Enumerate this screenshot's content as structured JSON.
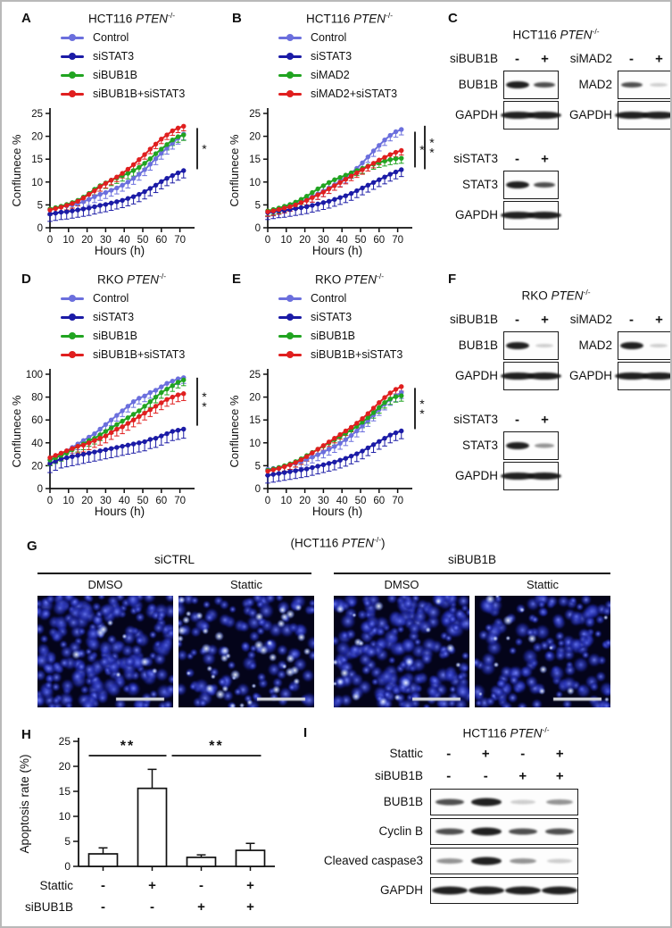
{
  "colors": {
    "control_blue": "#6b6fdd",
    "sistat3_blue": "#1b1ba6",
    "green": "#21a421",
    "red": "#e01f1f",
    "nuclei_blue": "#2133cc",
    "axis_black": "#111111"
  },
  "chart_data": [
    {
      "panel": "A",
      "type": "line",
      "title_cell": "HCT116",
      "title_gene": "PTEN",
      "title_sup": "-/-",
      "xlabel": "Hours (h)",
      "ylabel": "Conflunece %",
      "ylim": [
        0,
        25
      ],
      "yticks": [
        0,
        5,
        10,
        15,
        20,
        25
      ],
      "xticks": [
        0,
        10,
        20,
        30,
        40,
        50,
        60,
        70
      ],
      "x": [
        0,
        3,
        6,
        9,
        12,
        15,
        18,
        21,
        24,
        27,
        30,
        33,
        36,
        39,
        42,
        45,
        48,
        51,
        54,
        57,
        60,
        63,
        66,
        69,
        72
      ],
      "series": [
        {
          "name": "Control",
          "color": "#6b6fdd",
          "err": 1.3,
          "values": [
            4.0,
            4.3,
            4.6,
            4.8,
            5.0,
            5.3,
            5.7,
            6.2,
            6.8,
            7.3,
            7.7,
            8.2,
            8.7,
            9.3,
            10.0,
            10.8,
            11.7,
            12.7,
            13.9,
            15.1,
            16.3,
            17.4,
            18.5,
            19.6,
            20.5
          ]
        },
        {
          "name": "siSTAT3",
          "color": "#1b1ba6",
          "err": 1.6,
          "values": [
            3.0,
            3.2,
            3.4,
            3.5,
            3.7,
            3.9,
            4.1,
            4.3,
            4.6,
            4.9,
            5.1,
            5.4,
            5.7,
            6.0,
            6.4,
            6.8,
            7.3,
            7.9,
            8.6,
            9.3,
            10.1,
            10.8,
            11.4,
            12.0,
            12.5
          ]
        },
        {
          "name": "siBUB1B",
          "color": "#21a421",
          "err": 1.2,
          "values": [
            4.1,
            4.4,
            4.7,
            5.1,
            5.5,
            6.0,
            6.7,
            7.5,
            8.4,
            9.2,
            9.8,
            10.4,
            10.9,
            11.4,
            11.9,
            12.5,
            13.2,
            14.1,
            15.1,
            16.2,
            17.2,
            18.2,
            19.2,
            19.9,
            20.3
          ]
        },
        {
          "name": "siBUB1B+siSTAT3",
          "color": "#e01f1f",
          "err": 1.0,
          "values": [
            3.9,
            4.2,
            4.5,
            4.9,
            5.3,
            5.8,
            6.5,
            7.3,
            8.1,
            9.0,
            9.7,
            10.4,
            11.1,
            11.9,
            12.8,
            13.8,
            14.9,
            16.0,
            17.2,
            18.3,
            19.4,
            20.3,
            21.2,
            21.8,
            22.2
          ]
        }
      ],
      "sig": [
        {
          "label": "*",
          "from": 12.8,
          "to": 21.8,
          "lane": 0
        }
      ]
    },
    {
      "panel": "B",
      "type": "line",
      "title_cell": "HCT116",
      "title_gene": "PTEN",
      "title_sup": "-/-",
      "xlabel": "Hours (h)",
      "ylabel": "Conflunece %",
      "ylim": [
        0,
        25
      ],
      "yticks": [
        0,
        5,
        10,
        15,
        20,
        25
      ],
      "xticks": [
        0,
        10,
        20,
        30,
        40,
        50,
        60,
        70
      ],
      "x": [
        0,
        3,
        6,
        9,
        12,
        15,
        18,
        21,
        24,
        27,
        30,
        33,
        36,
        39,
        42,
        45,
        48,
        51,
        54,
        57,
        60,
        63,
        66,
        69,
        72
      ],
      "series": [
        {
          "name": "Control",
          "color": "#6b6fdd",
          "err": 1.2,
          "values": [
            3.6,
            3.8,
            4.1,
            4.4,
            4.8,
            5.2,
            5.7,
            6.2,
            6.8,
            7.4,
            8.0,
            8.7,
            9.4,
            10.2,
            11.0,
            12.0,
            13.0,
            14.2,
            15.5,
            16.8,
            18.0,
            19.2,
            20.2,
            21.0,
            21.5
          ]
        },
        {
          "name": "siSTAT3",
          "color": "#1b1ba6",
          "err": 1.5,
          "values": [
            3.3,
            3.5,
            3.7,
            3.8,
            4.0,
            4.2,
            4.4,
            4.6,
            4.9,
            5.2,
            5.5,
            5.8,
            6.2,
            6.6,
            7.0,
            7.5,
            8.1,
            8.7,
            9.3,
            9.9,
            10.5,
            11.1,
            11.7,
            12.2,
            12.7
          ]
        },
        {
          "name": "siMAD2",
          "color": "#21a421",
          "err": 1.1,
          "values": [
            3.7,
            4.0,
            4.3,
            4.7,
            5.1,
            5.6,
            6.2,
            6.9,
            7.7,
            8.5,
            9.2,
            9.9,
            10.5,
            11.0,
            11.5,
            12.0,
            12.5,
            13.0,
            13.5,
            13.9,
            14.3,
            14.6,
            14.9,
            15.1,
            15.2
          ]
        },
        {
          "name": "siMAD2+siSTAT3",
          "color": "#e01f1f",
          "err": 1.0,
          "values": [
            3.5,
            3.7,
            4.0,
            4.3,
            4.6,
            5.0,
            5.5,
            6.0,
            6.6,
            7.2,
            7.8,
            8.5,
            9.2,
            9.9,
            10.6,
            11.3,
            12.0,
            12.7,
            13.4,
            14.1,
            14.8,
            15.4,
            16.0,
            16.5,
            16.9
          ]
        }
      ],
      "sig": [
        {
          "label": "*",
          "from": 13.2,
          "to": 21.0,
          "lane": 0
        },
        {
          "label": "**",
          "from": 12.8,
          "to": 22.3,
          "lane": 1
        }
      ]
    },
    {
      "panel": "D",
      "type": "line",
      "title_cell": "RKO",
      "title_gene": "PTEN",
      "title_sup": "-/-",
      "xlabel": "Hours (h)",
      "ylabel": "Conflunece %",
      "ylim": [
        0,
        100
      ],
      "yticks": [
        0,
        20,
        40,
        60,
        80,
        100
      ],
      "xticks": [
        0,
        10,
        20,
        30,
        40,
        50,
        60,
        70
      ],
      "x": [
        0,
        3,
        6,
        9,
        12,
        15,
        18,
        21,
        24,
        27,
        30,
        33,
        36,
        39,
        42,
        45,
        48,
        51,
        54,
        57,
        60,
        63,
        66,
        69,
        72
      ],
      "series": [
        {
          "name": "Control",
          "color": "#6b6fdd",
          "err": 5,
          "values": [
            25,
            27,
            30,
            33,
            36,
            39,
            42,
            45,
            48,
            52,
            56,
            60,
            64,
            68,
            72,
            76,
            79,
            81,
            84,
            86,
            89,
            92,
            94,
            96,
            97
          ]
        },
        {
          "name": "siSTAT3",
          "color": "#1b1ba6",
          "err": 8,
          "values": [
            22,
            24,
            26,
            27,
            28,
            29,
            30,
            31,
            32,
            33,
            34,
            35,
            36,
            37,
            38,
            39,
            40,
            41,
            43,
            44,
            46,
            48,
            50,
            51,
            52
          ]
        },
        {
          "name": "siBUB1B",
          "color": "#21a421",
          "err": 5,
          "values": [
            25,
            27,
            29,
            31,
            34,
            37,
            39,
            42,
            44,
            47,
            50,
            53,
            56,
            59,
            62,
            65,
            68,
            72,
            76,
            80,
            84,
            87,
            90,
            93,
            95
          ]
        },
        {
          "name": "siBUB1B+siSTAT3",
          "color": "#e01f1f",
          "err": 6,
          "values": [
            27,
            29,
            31,
            33,
            35,
            37,
            38,
            40,
            42,
            44,
            46,
            49,
            52,
            54,
            57,
            60,
            63,
            66,
            69,
            72,
            75,
            78,
            80,
            82,
            83
          ]
        }
      ],
      "sig": [
        {
          "label": "**",
          "from": 55,
          "to": 97,
          "lane": 0
        }
      ]
    },
    {
      "panel": "E",
      "type": "line",
      "title_cell": "RKO",
      "title_gene": "PTEN",
      "title_sup": "-/-",
      "xlabel": "Hours (h)",
      "ylabel": "Conflunece %",
      "ylim": [
        0,
        25
      ],
      "yticks": [
        0,
        5,
        10,
        15,
        20,
        25
      ],
      "xticks": [
        0,
        10,
        20,
        30,
        40,
        50,
        60,
        70
      ],
      "x": [
        0,
        3,
        6,
        9,
        12,
        15,
        18,
        21,
        24,
        27,
        30,
        33,
        36,
        39,
        42,
        45,
        48,
        51,
        54,
        57,
        60,
        63,
        66,
        69,
        72
      ],
      "series": [
        {
          "name": "Control",
          "color": "#6b6fdd",
          "err": 1.3,
          "values": [
            4.2,
            4.4,
            4.6,
            4.9,
            5.2,
            5.5,
            5.9,
            6.4,
            6.9,
            7.4,
            8.0,
            8.6,
            9.2,
            9.9,
            10.7,
            11.6,
            12.6,
            13.7,
            14.9,
            16.1,
            17.3,
            18.5,
            19.5,
            20.3,
            21.0
          ]
        },
        {
          "name": "siSTAT3",
          "color": "#1b1ba6",
          "err": 1.7,
          "values": [
            2.9,
            3.1,
            3.3,
            3.5,
            3.7,
            3.9,
            4.1,
            4.3,
            4.6,
            4.9,
            5.2,
            5.5,
            5.8,
            6.2,
            6.6,
            7.1,
            7.6,
            8.2,
            8.9,
            9.6,
            10.3,
            11.0,
            11.7,
            12.2,
            12.6
          ]
        },
        {
          "name": "siBUB1B",
          "color": "#21a421",
          "err": 1.2,
          "values": [
            4.0,
            4.3,
            4.6,
            5.0,
            5.4,
            5.9,
            6.5,
            7.2,
            7.9,
            8.6,
            9.3,
            10.0,
            10.7,
            11.4,
            12.1,
            12.8,
            13.6,
            14.5,
            15.5,
            16.6,
            17.7,
            18.8,
            19.6,
            20.1,
            20.3
          ]
        },
        {
          "name": "siBUB1B+siSTAT3",
          "color": "#e01f1f",
          "err": 1.0,
          "values": [
            3.8,
            4.1,
            4.4,
            4.8,
            5.2,
            5.7,
            6.3,
            7.0,
            7.8,
            8.6,
            9.4,
            10.2,
            11.0,
            11.8,
            12.6,
            13.4,
            14.3,
            15.3,
            16.4,
            17.6,
            18.8,
            19.9,
            20.9,
            21.7,
            22.3
          ]
        }
      ],
      "sig": [
        {
          "label": "**",
          "from": 13.0,
          "to": 22.0,
          "lane": 0
        }
      ]
    },
    {
      "panel": "H",
      "type": "bar",
      "ylabel": "Apoptosis rate (%)",
      "ylim": [
        0,
        25
      ],
      "yticks": [
        0,
        5,
        10,
        15,
        20,
        25
      ],
      "values": [
        2.5,
        15.6,
        1.8,
        3.2
      ],
      "errors": [
        1.2,
        3.8,
        0.5,
        1.4
      ],
      "conditions": [
        {
          "label": "Stattic",
          "symbols": [
            "-",
            "+",
            "-",
            "+"
          ]
        },
        {
          "label": "siBUB1B",
          "symbols": [
            "-",
            "-",
            "+",
            "+"
          ]
        }
      ],
      "sig": [
        {
          "label": "**",
          "bars": [
            0,
            1
          ]
        },
        {
          "label": "**",
          "bars": [
            1,
            3
          ]
        }
      ]
    }
  ],
  "blots": {
    "C": {
      "panel": "C",
      "title_cell": "HCT116",
      "title_gene": "PTEN",
      "title_sup": "-/-",
      "blocks": [
        {
          "header": "siBUB1B",
          "lanes": [
            "-",
            "+"
          ],
          "col": 0,
          "row": 0,
          "rows": [
            {
              "label": "BUB1B",
              "bands": [
                "strong",
                "medium"
              ]
            },
            {
              "label": "GAPDH",
              "bands": [
                "strong",
                "strong"
              ]
            }
          ]
        },
        {
          "header": "siMAD2",
          "lanes": [
            "-",
            "+"
          ],
          "col": 1,
          "row": 0,
          "rows": [
            {
              "label": "MAD2",
              "bands": [
                "medium",
                "vfaint"
              ]
            },
            {
              "label": "GAPDH",
              "bands": [
                "strong",
                "strong"
              ]
            }
          ]
        },
        {
          "header": "siSTAT3",
          "lanes": [
            "-",
            "+"
          ],
          "col": 0,
          "row": 1,
          "rows": [
            {
              "label": "STAT3",
              "bands": [
                "strong",
                "medium"
              ]
            },
            {
              "label": "GAPDH",
              "bands": [
                "strong",
                "strong"
              ]
            }
          ]
        }
      ]
    },
    "F": {
      "panel": "F",
      "title_cell": "RKO",
      "title_gene": "PTEN",
      "title_sup": "-/-",
      "blocks": [
        {
          "header": "siBUB1B",
          "lanes": [
            "-",
            "+"
          ],
          "col": 0,
          "row": 0,
          "rows": [
            {
              "label": "BUB1B",
              "bands": [
                "strong",
                "vfaint"
              ]
            },
            {
              "label": "GAPDH",
              "bands": [
                "strong",
                "strong"
              ]
            }
          ]
        },
        {
          "header": "siMAD2",
          "lanes": [
            "-",
            "+"
          ],
          "col": 1,
          "row": 0,
          "rows": [
            {
              "label": "MAD2",
              "bands": [
                "strong",
                "vfaint"
              ]
            },
            {
              "label": "GAPDH",
              "bands": [
                "strong",
                "strong"
              ]
            }
          ]
        },
        {
          "header": "siSTAT3",
          "lanes": [
            "-",
            "+"
          ],
          "col": 0,
          "row": 1,
          "rows": [
            {
              "label": "STAT3",
              "bands": [
                "strong",
                "faint"
              ]
            },
            {
              "label": "GAPDH",
              "bands": [
                "strong",
                "strong"
              ]
            }
          ]
        }
      ]
    },
    "I": {
      "panel": "I",
      "title_cell": "HCT116",
      "title_gene": "PTEN",
      "title_sup": "-/-",
      "conditions": [
        {
          "label": "Stattic",
          "symbols": [
            "-",
            "+",
            "-",
            "+"
          ]
        },
        {
          "label": "siBUB1B",
          "symbols": [
            "-",
            "-",
            "+",
            "+"
          ]
        }
      ],
      "rows": [
        {
          "label": "BUB1B",
          "bands": [
            "medium",
            "strong",
            "vfaint",
            "faint"
          ]
        },
        {
          "label": "Cyclin B",
          "bands": [
            "medium",
            "strong",
            "medium",
            "medium"
          ]
        },
        {
          "label": "Cleaved caspase3",
          "bands": [
            "faint",
            "strong",
            "faint",
            "vfaint"
          ]
        },
        {
          "label": "GAPDH",
          "bands": [
            "strong",
            "strong",
            "strong",
            "strong"
          ]
        }
      ]
    }
  },
  "microscopy": {
    "panel": "G",
    "title_prefix": "(",
    "title_cell": "HCT116",
    "title_gene": "PTEN",
    "title_sup": "-/-",
    "title_suffix": ")",
    "groups": [
      {
        "label": "siCTRL"
      },
      {
        "label": "siBUB1B"
      }
    ],
    "images": [
      {
        "group": "siCTRL",
        "condition": "DMSO",
        "nuclei": 235,
        "bright": 8,
        "seed": 11
      },
      {
        "group": "siCTRL",
        "condition": "Stattic",
        "nuclei": 115,
        "bright": 42,
        "seed": 22
      },
      {
        "group": "siBUB1B",
        "condition": "DMSO",
        "nuclei": 215,
        "bright": 18,
        "seed": 33
      },
      {
        "group": "siBUB1B",
        "condition": "Stattic",
        "nuclei": 150,
        "bright": 15,
        "seed": 44
      }
    ]
  }
}
